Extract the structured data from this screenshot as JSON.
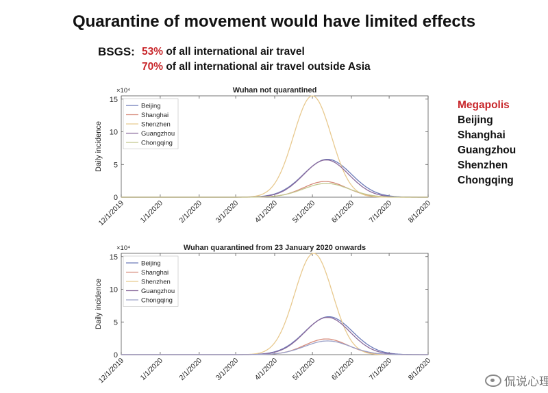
{
  "slide": {
    "title": "Quarantine of movement would have limited effects",
    "bsgs": {
      "label": "BSGS:",
      "line1_pct": "53%",
      "line1_text": " of all international air travel",
      "line2_pct": "70%",
      "line2_text": " of all international air travel outside Asia"
    },
    "megapolis": {
      "heading": "Megapolis",
      "cities": [
        "Beijing",
        "Shanghai",
        "Guangzhou",
        "Shenzhen",
        "Chongqing"
      ]
    },
    "watermark": "侃说心理"
  },
  "colors": {
    "accent_red": "#c8262a"
  },
  "chart_data": [
    {
      "type": "line",
      "title": "Wuhan not quarantined",
      "ylabel": "Daily incidence",
      "xlabel": "",
      "y_multiplier": "×10⁴",
      "ylim": [
        0,
        15.5
      ],
      "yticks": [
        0,
        5,
        10,
        15
      ],
      "yticklabels": [
        "0",
        "5",
        "10",
        "15"
      ],
      "xticklabels": [
        "12/1/2019",
        "1/1/2020",
        "2/1/2020",
        "3/1/2020",
        "4/1/2020",
        "5/1/2020",
        "6/1/2020",
        "7/1/2020",
        "8/1/2020"
      ],
      "legend_position": "top-left",
      "grid": false,
      "series": [
        {
          "name": "Beijing",
          "color": "#6b79b8",
          "peak_date": "2020-05-13",
          "peak_value": 5.8,
          "width_days": 19
        },
        {
          "name": "Shanghai",
          "color": "#d68a7a",
          "peak_date": "2020-05-11",
          "peak_value": 2.4,
          "width_days": 17
        },
        {
          "name": "Shenzhen",
          "color": "#e8c98e",
          "peak_date": "2020-05-01",
          "peak_value": 15.5,
          "width_days": 15
        },
        {
          "name": "Guangzhou",
          "color": "#8a6a9c",
          "peak_date": "2020-05-12",
          "peak_value": 5.7,
          "width_days": 18
        },
        {
          "name": "Chongqing",
          "color": "#c2c78e",
          "peak_date": "2020-05-12",
          "peak_value": 2.1,
          "width_days": 18
        }
      ]
    },
    {
      "type": "line",
      "title": "Wuhan quarantined from 23 January 2020 onwards",
      "ylabel": "Daily incidence",
      "xlabel": "",
      "y_multiplier": "×10⁴",
      "ylim": [
        0,
        15.5
      ],
      "yticks": [
        0,
        5,
        10,
        15
      ],
      "yticklabels": [
        "0",
        "5",
        "10",
        "15"
      ],
      "xticklabels": [
        "12/1/2019",
        "1/1/2020",
        "2/1/2020",
        "3/1/2020",
        "4/1/2020",
        "5/1/2020",
        "6/1/2020",
        "7/1/2020",
        "8/1/2020"
      ],
      "legend_position": "top-left",
      "grid": false,
      "series": [
        {
          "name": "Beijing",
          "color": "#6b79b8",
          "peak_date": "2020-05-14",
          "peak_value": 5.8,
          "width_days": 19
        },
        {
          "name": "Shanghai",
          "color": "#d68a7a",
          "peak_date": "2020-05-12",
          "peak_value": 2.4,
          "width_days": 17
        },
        {
          "name": "Shenzhen",
          "color": "#e8c98e",
          "peak_date": "2020-05-02",
          "peak_value": 15.5,
          "width_days": 15
        },
        {
          "name": "Guangzhou",
          "color": "#8a6a9c",
          "peak_date": "2020-05-13",
          "peak_value": 5.7,
          "width_days": 18
        },
        {
          "name": "Chongqing",
          "color": "#9aa0c8",
          "peak_date": "2020-05-13",
          "peak_value": 2.1,
          "width_days": 18
        }
      ]
    }
  ]
}
